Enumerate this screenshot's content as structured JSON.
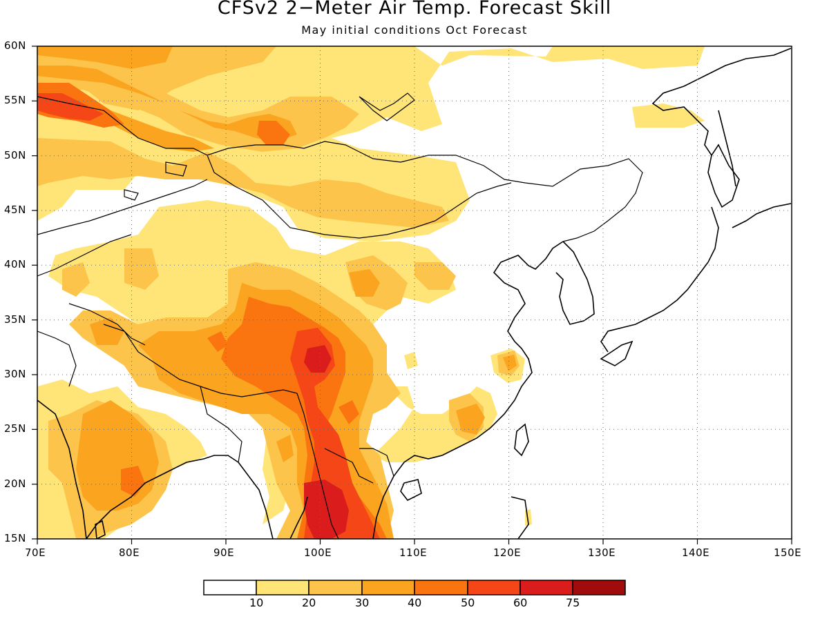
{
  "title": "CFSv2 2−Meter Air Temp. Forecast Skill",
  "subtitle": "May initial conditions  Oct Forecast",
  "y_axis_labels": [
    "60N",
    "55N",
    "50N",
    "45N",
    "40N",
    "35N",
    "30N",
    "25N",
    "20N",
    "15N"
  ],
  "x_axis_labels": [
    "70E",
    "80E",
    "90E",
    "100E",
    "110E",
    "120E",
    "130E",
    "140E",
    "150E"
  ],
  "colorbar": {
    "levels": [
      "10",
      "20",
      "30",
      "40",
      "50",
      "60",
      "75"
    ],
    "colors": [
      "#ffffff",
      "#ffe478",
      "#fcc44a",
      "#faa420",
      "#fa7410",
      "#f44616",
      "#da1c1c",
      "#a00c0c"
    ]
  },
  "map": {
    "lon_range": [
      70,
      150
    ],
    "lat_range": [
      15,
      60
    ],
    "grid_lines": "dotted"
  }
}
